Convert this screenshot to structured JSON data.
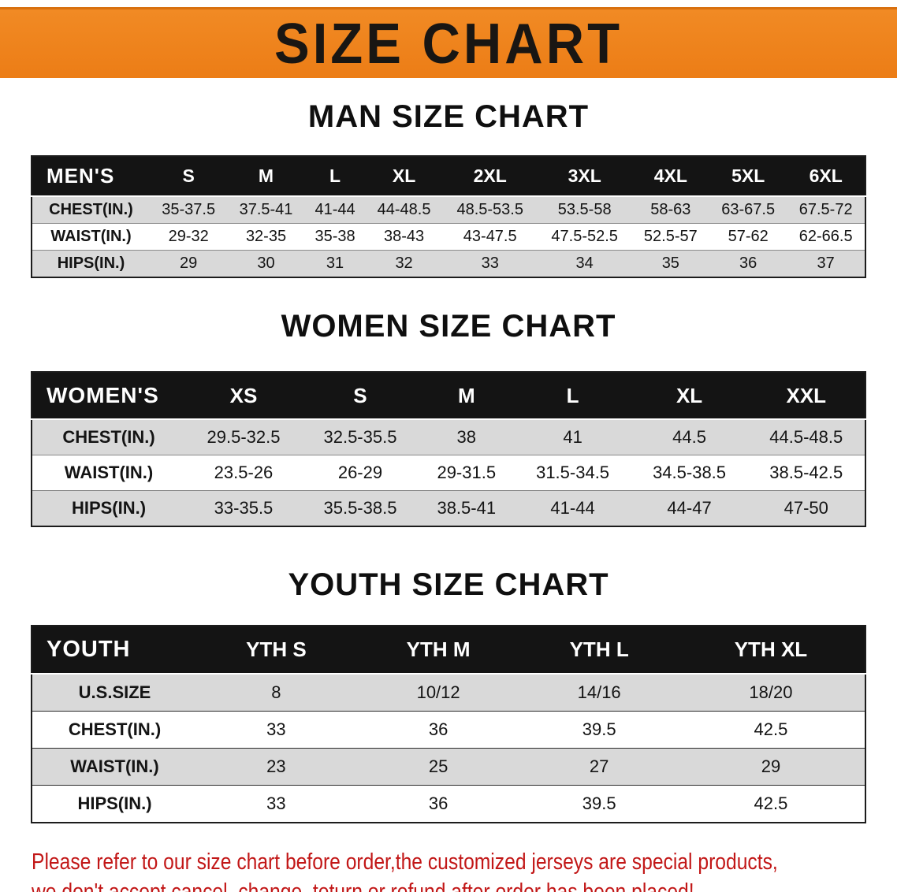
{
  "banner": {
    "title": "SIZE CHART"
  },
  "sections": [
    {
      "heading": "MAN SIZE CHART",
      "table": {
        "label": "MEN'S",
        "columns": [
          "S",
          "M",
          "L",
          "XL",
          "2XL",
          "3XL",
          "4XL",
          "5XL",
          "6XL"
        ],
        "rows": [
          {
            "label": "CHEST(IN.)",
            "values": [
              "35-37.5",
              "37.5-41",
              "41-44",
              "44-48.5",
              "48.5-53.5",
              "53.5-58",
              "58-63",
              "63-67.5",
              "67.5-72"
            ]
          },
          {
            "label": "WAIST(IN.)",
            "values": [
              "29-32",
              "32-35",
              "35-38",
              "38-43",
              "43-47.5",
              "47.5-52.5",
              "52.5-57",
              "57-62",
              "62-66.5"
            ]
          },
          {
            "label": "HIPS(IN.)",
            "values": [
              "29",
              "30",
              "31",
              "32",
              "33",
              "34",
              "35",
              "36",
              "37"
            ]
          }
        ]
      }
    },
    {
      "heading": "WOMEN SIZE CHART",
      "table": {
        "label": "WOMEN'S",
        "columns": [
          "XS",
          "S",
          "M",
          "L",
          "XL",
          "XXL"
        ],
        "rows": [
          {
            "label": "CHEST(IN.)",
            "values": [
              "29.5-32.5",
              "32.5-35.5",
              "38",
              "41",
              "44.5",
              "44.5-48.5"
            ]
          },
          {
            "label": "WAIST(IN.)",
            "values": [
              "23.5-26",
              "26-29",
              "29-31.5",
              "31.5-34.5",
              "34.5-38.5",
              "38.5-42.5"
            ]
          },
          {
            "label": "HIPS(IN.)",
            "values": [
              "33-35.5",
              "35.5-38.5",
              "38.5-41",
              "41-44",
              "44-47",
              "47-50"
            ]
          }
        ]
      }
    },
    {
      "heading": "YOUTH SIZE CHART",
      "table": {
        "label": "YOUTH",
        "columns": [
          "YTH S",
          "YTH M",
          "YTH L",
          "YTH XL"
        ],
        "rows": [
          {
            "label": "U.S.SIZE",
            "values": [
              "8",
              "10/12",
              "14/16",
              "18/20"
            ]
          },
          {
            "label": "CHEST(IN.)",
            "values": [
              "33",
              "36",
              "39.5",
              "42.5"
            ]
          },
          {
            "label": "WAIST(IN.)",
            "values": [
              "23",
              "25",
              "27",
              "29"
            ]
          },
          {
            "label": "HIPS(IN.)",
            "values": [
              "33",
              "36",
              "39.5",
              "42.5"
            ]
          }
        ]
      }
    }
  ],
  "footer": {
    "line1": "Please refer to our size chart before order,the customized jerseys are special products,",
    "line2": "we don't accept cancel, change, teturn or refund after order has been placed!"
  },
  "colors": {
    "banner_bg": "#ec7d16",
    "banner_bg_light": "#f18a24",
    "banner_border": "#d8700f",
    "header_bg": "#141414",
    "stripe_bg": "#d9d9d9",
    "footer_text": "#c21717"
  }
}
